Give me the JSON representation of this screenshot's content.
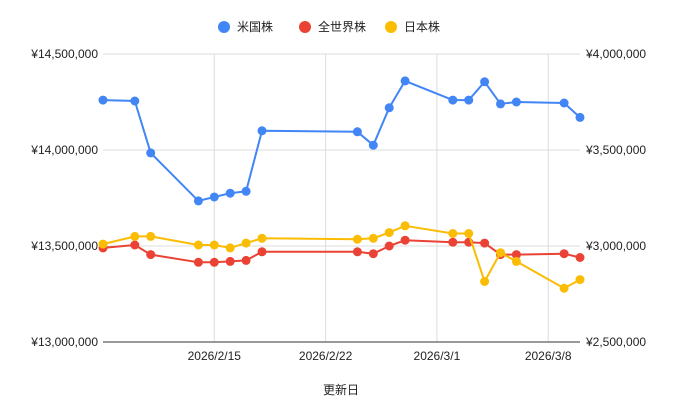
{
  "chart_data": {
    "type": "line",
    "xlabel": "更新日",
    "ylabel_left": "",
    "ylabel_right": "",
    "x_tick_labels": [
      "2026/2/15",
      "2026/2/22",
      "2026/3/1",
      "2026/3/8"
    ],
    "x_tick_dates": [
      "2026-02-15",
      "2026-02-22",
      "2026-03-01",
      "2026-03-08"
    ],
    "xlim": [
      "2026-02-08",
      "2026-03-10"
    ],
    "y_left": {
      "lim": [
        13000000,
        14500000
      ],
      "ticks": [
        13000000,
        13500000,
        14000000,
        14500000
      ],
      "tick_labels": [
        "¥13,000,000",
        "¥13,500,000",
        "¥14,000,000",
        "¥14,500,000"
      ]
    },
    "y_right": {
      "lim": [
        2500000,
        4000000
      ],
      "ticks": [
        2500000,
        3000000,
        3500000,
        4000000
      ],
      "tick_labels": [
        "¥2,500,000",
        "¥3,000,000",
        "¥3,500,000",
        "¥4,000,000"
      ]
    },
    "grid": true,
    "legend_position": "top",
    "series": [
      {
        "name": "米国株",
        "color": "#4285f4",
        "axis": "left",
        "x": [
          "2026-02-08",
          "2026-02-10",
          "2026-02-11",
          "2026-02-14",
          "2026-02-15",
          "2026-02-16",
          "2026-02-17",
          "2026-02-18",
          "2026-02-24",
          "2026-02-25",
          "2026-02-26",
          "2026-02-27",
          "2026-03-02",
          "2026-03-03",
          "2026-03-04",
          "2026-03-05",
          "2026-03-06",
          "2026-03-09",
          "2026-03-10"
        ],
        "values": [
          14260000,
          14255000,
          13985000,
          13735000,
          13755000,
          13775000,
          13785000,
          14100000,
          14095000,
          14025000,
          14220000,
          14360000,
          14260000,
          14260000,
          14355000,
          14240000,
          14250000,
          14245000,
          14170000
        ]
      },
      {
        "name": "全世界株",
        "color": "#ea4335",
        "axis": "right",
        "x": [
          "2026-02-08",
          "2026-02-10",
          "2026-02-11",
          "2026-02-14",
          "2026-02-15",
          "2026-02-16",
          "2026-02-17",
          "2026-02-18",
          "2026-02-24",
          "2026-02-25",
          "2026-02-26",
          "2026-02-27",
          "2026-03-02",
          "2026-03-03",
          "2026-03-04",
          "2026-03-05",
          "2026-03-06",
          "2026-03-09",
          "2026-03-10"
        ],
        "values": [
          2990000,
          3005000,
          2955000,
          2915000,
          2915000,
          2920000,
          2925000,
          2970000,
          2970000,
          2960000,
          3000000,
          3030000,
          3020000,
          3020000,
          3015000,
          2955000,
          2955000,
          2960000,
          2940000
        ]
      },
      {
        "name": "日本株",
        "color": "#fbbc04",
        "axis": "right",
        "x": [
          "2026-02-08",
          "2026-02-10",
          "2026-02-11",
          "2026-02-14",
          "2026-02-15",
          "2026-02-16",
          "2026-02-17",
          "2026-02-18",
          "2026-02-24",
          "2026-02-25",
          "2026-02-26",
          "2026-02-27",
          "2026-03-02",
          "2026-03-03",
          "2026-03-04",
          "2026-03-05",
          "2026-03-06",
          "2026-03-09",
          "2026-03-10"
        ],
        "values": [
          3010000,
          3050000,
          3050000,
          3005000,
          3005000,
          2990000,
          3015000,
          3040000,
          3035000,
          3040000,
          3070000,
          3105000,
          3065000,
          3065000,
          2815000,
          2965000,
          2920000,
          2780000,
          2825000
        ]
      }
    ]
  }
}
